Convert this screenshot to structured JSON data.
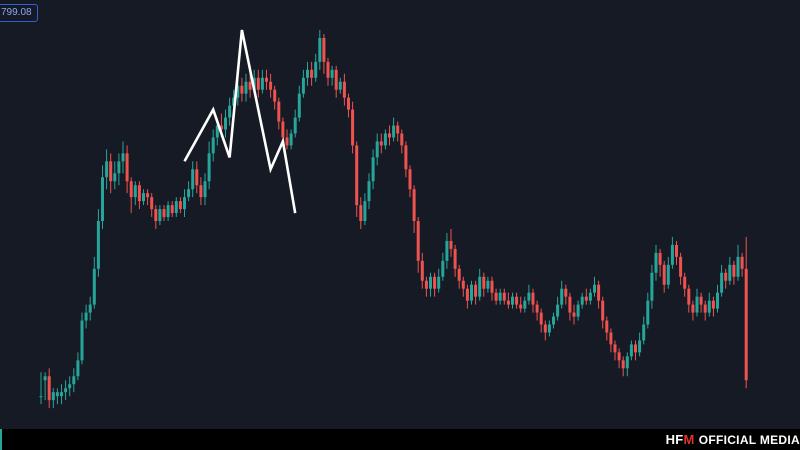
{
  "price_label": "799.08",
  "footer": {
    "logo_left": "HF",
    "logo_mark": "M",
    "tagline": "OFFICIAL MEDIA"
  },
  "colors": {
    "background": "#161a25",
    "up": "#26a69a",
    "down": "#ef5350",
    "pattern_line": "#ffffff",
    "logo_accent": "#e3322b"
  },
  "chart_data": {
    "type": "candlestick",
    "title": "",
    "xlabel": "",
    "ylabel": "",
    "grid": false,
    "y_range": [
      0,
      100
    ],
    "candles": [
      [
        8,
        8,
        14,
        6,
        "up"
      ],
      [
        12,
        13,
        14,
        7,
        "up"
      ],
      [
        13,
        7,
        15,
        5,
        "down"
      ],
      [
        7,
        9,
        10,
        5,
        "up"
      ],
      [
        8,
        9,
        10,
        6,
        "up"
      ],
      [
        8,
        9,
        11,
        6,
        "up"
      ],
      [
        9,
        10,
        12,
        7,
        "up"
      ],
      [
        10,
        11,
        13,
        8,
        "up"
      ],
      [
        11,
        13,
        15,
        9,
        "up"
      ],
      [
        13,
        17,
        19,
        12,
        "up"
      ],
      [
        17,
        27,
        29,
        16,
        "up"
      ],
      [
        27,
        29,
        31,
        25,
        "up"
      ],
      [
        29,
        31,
        33,
        27,
        "up"
      ],
      [
        31,
        40,
        43,
        30,
        "up"
      ],
      [
        40,
        52,
        55,
        38,
        "up"
      ],
      [
        52,
        63,
        66,
        50,
        "up"
      ],
      [
        63,
        67,
        70,
        60,
        "up"
      ],
      [
        67,
        62,
        69,
        59,
        "down"
      ],
      [
        62,
        64,
        67,
        60,
        "up"
      ],
      [
        64,
        67,
        69,
        61,
        "up"
      ],
      [
        67,
        69,
        72,
        64,
        "up"
      ],
      [
        69,
        62,
        71,
        59,
        "down"
      ],
      [
        62,
        58,
        63,
        54,
        "down"
      ],
      [
        58,
        61,
        62,
        56,
        "up"
      ],
      [
        61,
        57,
        62,
        55,
        "down"
      ],
      [
        57,
        59,
        60,
        56,
        "up"
      ],
      [
        59,
        58,
        60,
        56,
        "down"
      ],
      [
        58,
        55,
        59,
        53,
        "down"
      ],
      [
        55,
        52,
        56,
        50,
        "down"
      ],
      [
        52,
        55,
        56,
        51,
        "up"
      ],
      [
        55,
        53,
        56,
        52,
        "down"
      ],
      [
        53,
        56,
        57,
        52,
        "up"
      ],
      [
        56,
        54,
        57,
        53,
        "down"
      ],
      [
        54,
        57,
        58,
        53,
        "up"
      ],
      [
        57,
        55,
        58,
        54,
        "down"
      ],
      [
        55,
        58,
        60,
        53,
        "up"
      ],
      [
        58,
        60,
        62,
        57,
        "up"
      ],
      [
        60,
        65,
        67,
        58,
        "up"
      ],
      [
        65,
        61,
        67,
        59,
        "down"
      ],
      [
        61,
        58,
        63,
        56,
        "down"
      ],
      [
        58,
        62,
        64,
        56,
        "up"
      ],
      [
        62,
        69,
        72,
        60,
        "up"
      ],
      [
        69,
        73,
        75,
        67,
        "up"
      ],
      [
        73,
        76,
        78,
        71,
        "up"
      ],
      [
        76,
        75,
        79,
        73,
        "down"
      ],
      [
        75,
        78,
        80,
        73,
        "up"
      ],
      [
        78,
        81,
        83,
        76,
        "up"
      ],
      [
        81,
        83,
        85,
        79,
        "up"
      ],
      [
        83,
        86,
        88,
        81,
        "up"
      ],
      [
        86,
        84,
        88,
        82,
        "down"
      ],
      [
        84,
        87,
        89,
        82,
        "up"
      ],
      [
        87,
        85,
        89,
        83,
        "down"
      ],
      [
        85,
        88,
        90,
        84,
        "up"
      ],
      [
        88,
        85,
        90,
        83,
        "down"
      ],
      [
        85,
        88,
        90,
        84,
        "up"
      ],
      [
        88,
        87,
        90,
        85,
        "down"
      ],
      [
        87,
        85,
        89,
        83,
        "down"
      ],
      [
        85,
        82,
        86,
        80,
        "down"
      ],
      [
        82,
        77,
        83,
        75,
        "down"
      ],
      [
        77,
        73,
        78,
        71,
        "down"
      ],
      [
        73,
        71,
        75,
        70,
        "down"
      ],
      [
        71,
        74,
        75,
        70,
        "up"
      ],
      [
        74,
        78,
        80,
        73,
        "up"
      ],
      [
        78,
        84,
        86,
        77,
        "up"
      ],
      [
        84,
        88,
        90,
        83,
        "up"
      ],
      [
        88,
        90,
        92,
        86,
        "up"
      ],
      [
        90,
        88,
        92,
        86,
        "down"
      ],
      [
        88,
        92,
        94,
        87,
        "up"
      ],
      [
        92,
        98,
        100,
        90,
        "up"
      ],
      [
        98,
        92,
        99,
        89,
        "down"
      ],
      [
        92,
        88,
        93,
        86,
        "down"
      ],
      [
        88,
        90,
        91,
        86,
        "up"
      ],
      [
        90,
        85,
        91,
        83,
        "down"
      ],
      [
        85,
        87,
        88,
        84,
        "up"
      ],
      [
        87,
        83,
        89,
        81,
        "down"
      ],
      [
        83,
        80,
        84,
        78,
        "down"
      ],
      [
        80,
        71,
        82,
        69,
        "down"
      ],
      [
        71,
        56,
        72,
        53,
        "down"
      ],
      [
        56,
        52,
        58,
        50,
        "down"
      ],
      [
        52,
        57,
        59,
        51,
        "up"
      ],
      [
        57,
        62,
        64,
        55,
        "up"
      ],
      [
        62,
        68,
        70,
        60,
        "up"
      ],
      [
        68,
        72,
        74,
        66,
        "up"
      ],
      [
        72,
        71,
        74,
        69,
        "down"
      ],
      [
        71,
        74,
        75,
        70,
        "up"
      ],
      [
        74,
        73,
        76,
        71,
        "down"
      ],
      [
        73,
        76,
        78,
        72,
        "up"
      ],
      [
        76,
        74,
        77,
        72,
        "down"
      ],
      [
        74,
        71,
        75,
        69,
        "down"
      ],
      [
        71,
        65,
        72,
        63,
        "down"
      ],
      [
        65,
        60,
        66,
        58,
        "down"
      ],
      [
        60,
        52,
        61,
        49,
        "down"
      ],
      [
        52,
        42,
        53,
        39,
        "down"
      ],
      [
        42,
        37,
        44,
        35,
        "down"
      ],
      [
        37,
        35,
        38,
        33,
        "down"
      ],
      [
        35,
        38,
        39,
        33,
        "up"
      ],
      [
        38,
        35,
        39,
        33,
        "down"
      ],
      [
        35,
        38,
        40,
        34,
        "up"
      ],
      [
        38,
        42,
        44,
        37,
        "up"
      ],
      [
        42,
        47,
        49,
        40,
        "up"
      ],
      [
        47,
        45,
        50,
        43,
        "down"
      ],
      [
        45,
        40,
        46,
        38,
        "down"
      ],
      [
        40,
        37,
        41,
        35,
        "down"
      ],
      [
        37,
        35,
        38,
        33,
        "down"
      ],
      [
        35,
        32,
        36,
        30,
        "down"
      ],
      [
        32,
        36,
        37,
        31,
        "up"
      ],
      [
        36,
        33,
        37,
        31,
        "down"
      ],
      [
        33,
        38,
        40,
        32,
        "up"
      ],
      [
        38,
        35,
        39,
        33,
        "down"
      ],
      [
        35,
        37,
        38,
        34,
        "up"
      ],
      [
        37,
        34,
        38,
        32,
        "down"
      ],
      [
        34,
        32,
        35,
        31,
        "down"
      ],
      [
        32,
        34,
        35,
        31,
        "up"
      ],
      [
        34,
        32,
        35,
        31,
        "down"
      ],
      [
        32,
        31,
        34,
        30,
        "down"
      ],
      [
        31,
        33,
        34,
        30,
        "up"
      ],
      [
        33,
        31,
        34,
        30,
        "down"
      ],
      [
        31,
        30,
        33,
        29,
        "down"
      ],
      [
        30,
        32,
        33,
        29,
        "up"
      ],
      [
        32,
        34,
        36,
        31,
        "up"
      ],
      [
        34,
        31,
        35,
        29,
        "down"
      ],
      [
        31,
        29,
        32,
        27,
        "down"
      ],
      [
        29,
        26,
        30,
        24,
        "down"
      ],
      [
        26,
        24,
        27,
        22,
        "down"
      ],
      [
        24,
        26,
        27,
        23,
        "up"
      ],
      [
        26,
        28,
        29,
        25,
        "up"
      ],
      [
        28,
        31,
        33,
        27,
        "up"
      ],
      [
        31,
        35,
        37,
        30,
        "up"
      ],
      [
        35,
        33,
        36,
        31,
        "down"
      ],
      [
        33,
        29,
        34,
        27,
        "down"
      ],
      [
        29,
        28,
        31,
        26,
        "down"
      ],
      [
        28,
        31,
        32,
        27,
        "up"
      ],
      [
        31,
        33,
        34,
        30,
        "up"
      ],
      [
        33,
        32,
        35,
        31,
        "down"
      ],
      [
        32,
        34,
        35,
        31,
        "up"
      ],
      [
        34,
        36,
        38,
        33,
        "up"
      ],
      [
        36,
        32,
        37,
        30,
        "down"
      ],
      [
        32,
        27,
        33,
        25,
        "down"
      ],
      [
        27,
        24,
        28,
        22,
        "down"
      ],
      [
        24,
        21,
        25,
        19,
        "down"
      ],
      [
        21,
        19,
        22,
        17,
        "down"
      ],
      [
        19,
        17,
        20,
        15,
        "down"
      ],
      [
        17,
        15,
        18,
        13,
        "down"
      ],
      [
        15,
        18,
        19,
        13,
        "up"
      ],
      [
        18,
        21,
        22,
        17,
        "up"
      ],
      [
        21,
        19,
        22,
        17,
        "down"
      ],
      [
        19,
        22,
        24,
        18,
        "up"
      ],
      [
        22,
        26,
        28,
        21,
        "up"
      ],
      [
        26,
        32,
        34,
        25,
        "up"
      ],
      [
        32,
        39,
        41,
        30,
        "up"
      ],
      [
        39,
        44,
        46,
        37,
        "up"
      ],
      [
        44,
        41,
        45,
        38,
        "down"
      ],
      [
        41,
        36,
        42,
        34,
        "down"
      ],
      [
        36,
        41,
        43,
        35,
        "up"
      ],
      [
        41,
        46,
        48,
        40,
        "up"
      ],
      [
        46,
        43,
        47,
        41,
        "down"
      ],
      [
        43,
        38,
        44,
        36,
        "down"
      ],
      [
        38,
        35,
        39,
        33,
        "down"
      ],
      [
        35,
        31,
        36,
        29,
        "down"
      ],
      [
        31,
        29,
        32,
        27,
        "down"
      ],
      [
        29,
        33,
        35,
        28,
        "up"
      ],
      [
        33,
        31,
        34,
        29,
        "down"
      ],
      [
        31,
        29,
        32,
        27,
        "down"
      ],
      [
        29,
        32,
        34,
        28,
        "up"
      ],
      [
        32,
        30,
        33,
        28,
        "down"
      ],
      [
        30,
        34,
        36,
        29,
        "up"
      ],
      [
        34,
        39,
        41,
        33,
        "up"
      ],
      [
        39,
        37,
        40,
        35,
        "down"
      ],
      [
        37,
        41,
        43,
        36,
        "up"
      ],
      [
        41,
        38,
        42,
        36,
        "down"
      ],
      [
        38,
        43,
        46,
        37,
        "up"
      ],
      [
        43,
        40,
        44,
        38,
        "down"
      ],
      [
        40,
        12,
        48,
        10,
        "down"
      ]
    ],
    "pattern_line": [
      [
        35,
        67
      ],
      [
        42,
        80
      ],
      [
        46,
        68
      ],
      [
        49,
        100
      ],
      [
        56,
        65
      ],
      [
        59,
        72
      ],
      [
        62,
        54
      ]
    ]
  }
}
